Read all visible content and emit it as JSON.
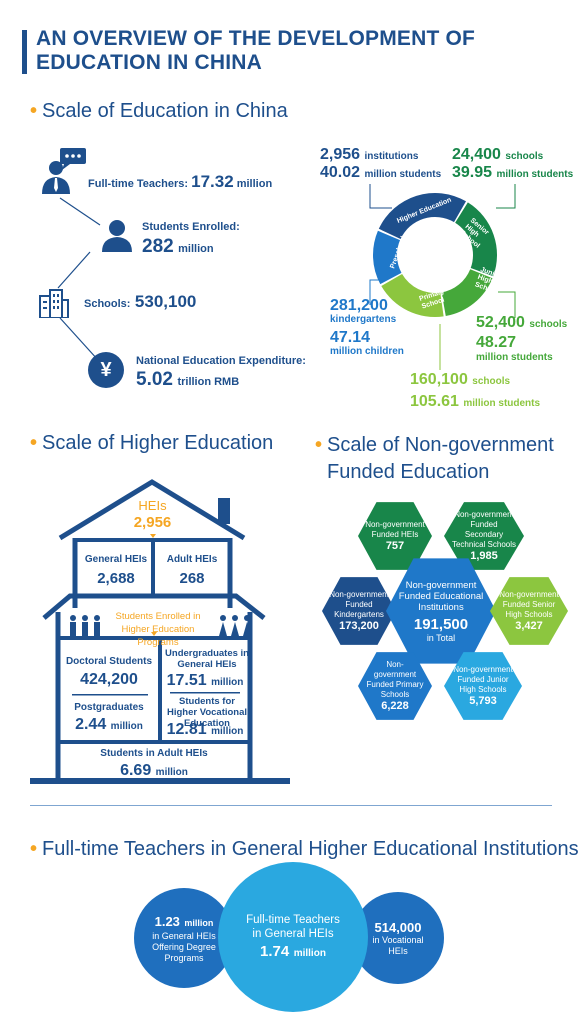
{
  "title": "AN OVERVIEW OF THE DEVELOPMENT OF EDUCATION IN CHINA",
  "sections": {
    "scale": "Scale of Education in China",
    "higher": "Scale of Higher Education",
    "nongov": "Scale of Non-government Funded Education",
    "teachers": "Full-time Teachers in General Higher Educational Institutions"
  },
  "scale": {
    "teachers_label": "Full-time Teachers:",
    "teachers_value": "17.32",
    "teachers_unit": "million",
    "students_label": "Students Enrolled:",
    "students_value": "282",
    "students_unit": "million",
    "schools_label": "Schools:",
    "schools_value": "530,100",
    "expenditure_label": "National Education Expenditure:",
    "expenditure_value": "5.02",
    "expenditure_unit": "trillion RMB"
  },
  "ring": {
    "segments": [
      {
        "label": "Higher Education",
        "color": "#1e4f8c"
      },
      {
        "label": "Senior High School",
        "color": "#18864a"
      },
      {
        "label": "Junior High School",
        "color": "#45a83a"
      },
      {
        "label": "Primary School",
        "color": "#8cc63f"
      },
      {
        "label": "Preschool",
        "color": "#1f78c9"
      }
    ],
    "higher": {
      "n1": "2,956",
      "u1": "institutions",
      "n2": "40.02",
      "u2": "million students"
    },
    "senior": {
      "n1": "24,400",
      "u1": "schools",
      "n2": "39.95",
      "u2": "million students"
    },
    "preschool": {
      "n1": "281,200",
      "u1": "kindergartens",
      "n2": "47.14",
      "u2": "million children"
    },
    "junior": {
      "n1": "52,400",
      "u1": "schools",
      "n2": "48.27",
      "u2": "million students"
    },
    "primary": {
      "n1": "160,100",
      "u1": "schools",
      "n2": "105.61",
      "u2": "million students"
    }
  },
  "higher": {
    "heis_label": "HEIs",
    "heis_value": "2,956",
    "general_label": "General HEIs",
    "general_value": "2,688",
    "adult_label": "Adult HEIs",
    "adult_value": "268",
    "enrolled_label": "Students Enrolled in Higher Education Programs",
    "doctoral_label": "Doctoral Students",
    "doctoral_value": "424,200",
    "postgrad_label": "Postgraduates",
    "postgrad_value": "2.44",
    "postgrad_unit": "million",
    "undergrad_label": "Undergraduates in General HEIs",
    "undergrad_value": "17.51",
    "undergrad_unit": "million",
    "vocational_label": "Students for Higher Vocational Education",
    "vocational_value": "12.81",
    "vocational_unit": "million",
    "adult_students_label": "Students in Adult HEIs",
    "adult_students_value": "6.69",
    "adult_students_unit": "million"
  },
  "nongov": {
    "center_label": "Non-government Funded Educational Institutions",
    "center_value": "191,500",
    "center_unit": "in Total",
    "heis_label": "Non-government Funded HEIs",
    "heis_value": "757",
    "sec_tech_label": "Non-government Funded Secondary Technical Schools",
    "sec_tech_value": "1,985",
    "kinder_label": "Non-government Funded Kindergartens",
    "kinder_value": "173,200",
    "senior_label": "Non-government Funded Senior High Schools",
    "senior_value": "3,427",
    "primary_label": "Non-government Funded Primary Schools",
    "primary_value": "6,228",
    "junior_label": "Non-government Funded Junior High Schools",
    "junior_value": "5,793"
  },
  "teachers": {
    "left_value": "1.23",
    "left_unit": "million",
    "left_label": "in General HEIs Offering Degree Programs",
    "center_label": "Full-time Teachers in General HEIs",
    "center_value": "1.74",
    "center_unit": "million",
    "right_value": "514,000",
    "right_label": "in Vocational HEIs"
  },
  "colors": {
    "navy": "#1e4f8c",
    "orange": "#f5a623",
    "blue": "#1f78c9",
    "light_blue": "#2aa8e0",
    "green": "#45a83a",
    "light_green": "#8cc63f",
    "dark_green": "#18864a"
  }
}
